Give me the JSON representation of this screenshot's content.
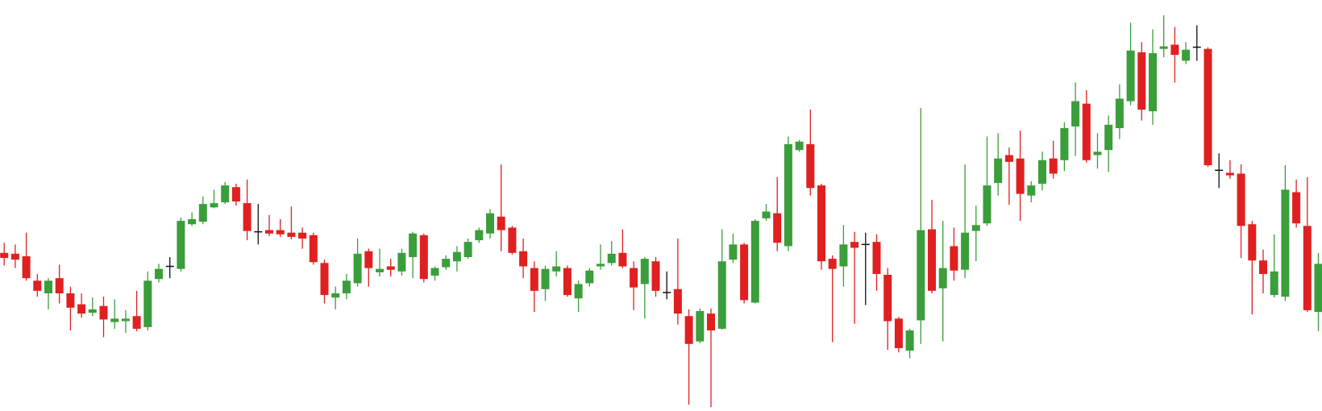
{
  "chart_data": {
    "type": "candlestick",
    "up_color": "#3a9e3a",
    "down_color": "#e02020",
    "flat_color": "#111111",
    "ylim": [
      0,
      500
    ],
    "open": [
      200,
      199,
      196,
      167,
      152,
      170,
      152,
      139,
      129,
      137,
      118,
      119,
      125,
      112,
      169,
      184,
      181,
      234,
      237,
      254,
      260,
      278,
      259,
      225,
      227,
      227,
      224,
      224,
      221,
      188,
      147,
      152,
      164,
      202,
      177,
      184,
      178,
      195,
      221,
      173,
      183,
      190,
      195,
      215,
      223,
      243,
      230,
      202,
      182,
      157,
      178,
      182,
      146,
      164,
      184,
      188,
      200,
      182,
      163,
      190,
      153,
      157,
      125,
      95,
      128,
      110,
      192,
      210,
      141,
      241,
      247,
      208,
      322,
      329,
      280,
      193,
      184,
      213,
      210,
      213,
      174,
      122,
      84,
      120,
      228,
      158,
      208,
      180,
      226,
      235,
      283,
      316,
      312,
      268,
      282,
      312,
      310,
      350,
      377,
      316,
      322,
      348,
      380,
      438,
      368,
      442,
      447,
      428,
      444,
      442,
      298,
      295,
      294,
      234,
      191,
      150,
      148,
      272,
      232,
      130
    ],
    "high": [
      212,
      210,
      224,
      175,
      170,
      186,
      160,
      152,
      147,
      148,
      145,
      132,
      155,
      178,
      187,
      195,
      242,
      248,
      267,
      275,
      284,
      282,
      287,
      258,
      245,
      240,
      255,
      230,
      224,
      192,
      160,
      175,
      217,
      205,
      205,
      193,
      205,
      225,
      223,
      184,
      197,
      208,
      217,
      230,
      252,
      305,
      232,
      217,
      190,
      185,
      202,
      185,
      167,
      182,
      210,
      214,
      228,
      190,
      195,
      195,
      178,
      217,
      133,
      134,
      134,
      228,
      223,
      212,
      240,
      258,
      290,
      338,
      334,
      370,
      282,
      197,
      233,
      225,
      224,
      222,
      182,
      124,
      110,
      372,
      263,
      238,
      230,
      305,
      256,
      338,
      342,
      325,
      345,
      285,
      320,
      333,
      355,
      402,
      393,
      342,
      363,
      400,
      473,
      450,
      465,
      482,
      468,
      450,
      470,
      444,
      318,
      310,
      305,
      238,
      204,
      222,
      304,
      287,
      290,
      200
    ],
    "low": [
      185,
      182,
      167,
      148,
      133,
      140,
      108,
      123,
      125,
      100,
      110,
      105,
      107,
      108,
      165,
      170,
      178,
      232,
      234,
      253,
      258,
      256,
      215,
      210,
      220,
      219,
      216,
      205,
      186,
      140,
      133,
      145,
      160,
      160,
      172,
      172,
      173,
      170,
      165,
      167,
      180,
      178,
      193,
      212,
      217,
      202,
      198,
      170,
      130,
      143,
      172,
      148,
      130,
      160,
      180,
      185,
      182,
      132,
      122,
      148,
      145,
      115,
      20,
      93,
      17,
      109,
      188,
      140,
      140,
      238,
      202,
      202,
      320,
      268,
      180,
      94,
      160,
      116,
      138,
      155,
      85,
      82,
      75,
      92,
      152,
      95,
      167,
      170,
      190,
      232,
      268,
      257,
      238,
      260,
      274,
      288,
      297,
      315,
      307,
      300,
      296,
      335,
      375,
      357,
      352,
      432,
      402,
      424,
      428,
      302,
      277,
      288,
      194,
      127,
      152,
      147,
      143,
      230,
      130,
      107
    ],
    "close": [
      194,
      192,
      170,
      155,
      167,
      152,
      135,
      128,
      133,
      121,
      122,
      122,
      110,
      167,
      181,
      184,
      238,
      240,
      258,
      259,
      280,
      261,
      226,
      225,
      223,
      222,
      219,
      217,
      189,
      150,
      152,
      167,
      199,
      182,
      181,
      180,
      200,
      223,
      169,
      182,
      193,
      201,
      213,
      227,
      247,
      227,
      200,
      184,
      155,
      181,
      184,
      150,
      163,
      179,
      187,
      199,
      184,
      159,
      193,
      155,
      153,
      128,
      92,
      131,
      108,
      190,
      210,
      144,
      238,
      249,
      212,
      329,
      332,
      277,
      190,
      181,
      210,
      206,
      210,
      175,
      119,
      87,
      108,
      227,
      155,
      182,
      179,
      224,
      233,
      280,
      312,
      308,
      270,
      280,
      310,
      294,
      348,
      380,
      310,
      320,
      352,
      383,
      440,
      370,
      437,
      445,
      435,
      441,
      444,
      304,
      298,
      292,
      232,
      191,
      175,
      178,
      275,
      235,
      132,
      187
    ]
  }
}
